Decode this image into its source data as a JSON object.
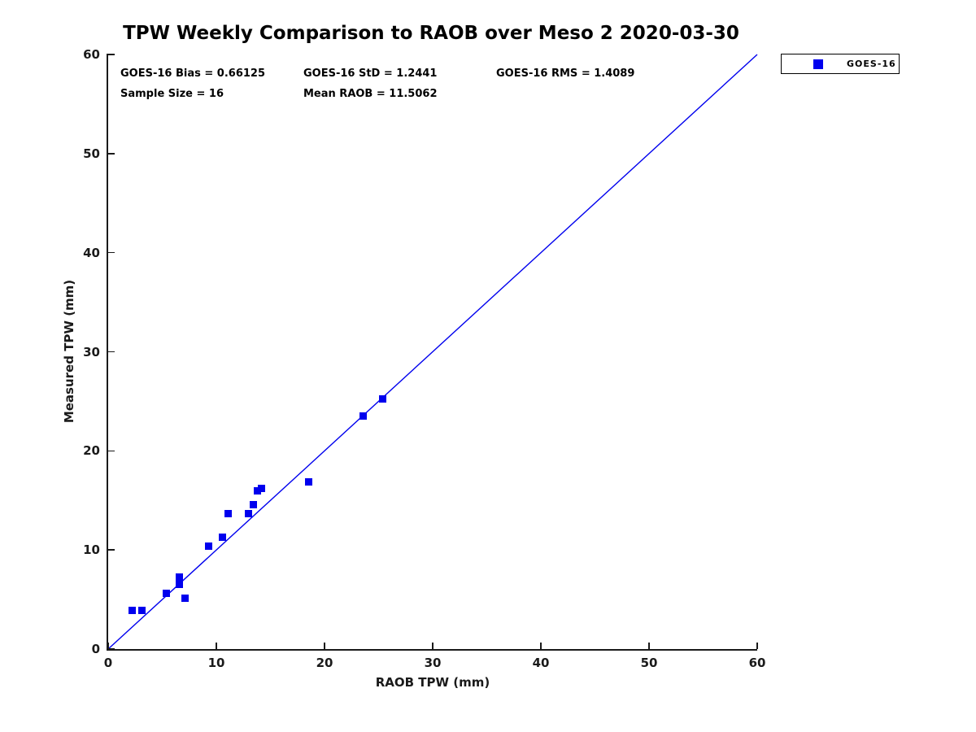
{
  "title": "TPW Weekly Comparison to RAOB over Meso 2 2020-03-30",
  "stats": {
    "bias": "GOES-16 Bias = 0.66125",
    "std": "GOES-16 StD = 1.2441",
    "rms": "GOES-16 RMS = 1.4089",
    "sample_size": "Sample Size = 16",
    "mean_raob": "Mean RAOB = 11.5062"
  },
  "legend": {
    "entries": [
      {
        "label": "GOES-16",
        "marker": "square",
        "color": "#0000EE"
      }
    ],
    "position": "top-right-outside"
  },
  "chart_data": {
    "type": "scatter",
    "title": "TPW Weekly Comparison to RAOB over Meso 2 2020-03-30",
    "xlabel": "RAOB TPW (mm)",
    "ylabel": "Measured TPW (mm)",
    "xlim": [
      0,
      60
    ],
    "ylim": [
      0,
      60
    ],
    "xticks": [
      0,
      10,
      20,
      30,
      40,
      50,
      60
    ],
    "yticks": [
      0,
      10,
      20,
      30,
      40,
      50,
      60
    ],
    "grid": false,
    "legend_position": "top-right-outside",
    "series": [
      {
        "name": "GOES-16",
        "marker": "square",
        "color": "#0000EE",
        "points": [
          [
            2.2,
            3.9
          ],
          [
            3.1,
            3.9
          ],
          [
            5.4,
            5.6
          ],
          [
            6.6,
            7.3
          ],
          [
            6.6,
            6.5
          ],
          [
            7.1,
            5.1
          ],
          [
            9.3,
            10.4
          ],
          [
            10.6,
            11.3
          ],
          [
            11.1,
            13.7
          ],
          [
            13.0,
            13.7
          ],
          [
            13.4,
            14.6
          ],
          [
            13.8,
            16.0
          ],
          [
            14.2,
            16.2
          ],
          [
            18.5,
            16.9
          ],
          [
            23.6,
            23.5
          ],
          [
            25.4,
            25.2
          ]
        ]
      }
    ],
    "reference_line": {
      "from": [
        0,
        0
      ],
      "to": [
        60,
        60
      ],
      "color": "#0000EE"
    },
    "annotations": [
      "GOES-16 Bias = 0.66125",
      "GOES-16 StD = 1.2441",
      "GOES-16 RMS = 1.4089",
      "Sample Size = 16",
      "Mean RAOB = 11.5062"
    ]
  }
}
